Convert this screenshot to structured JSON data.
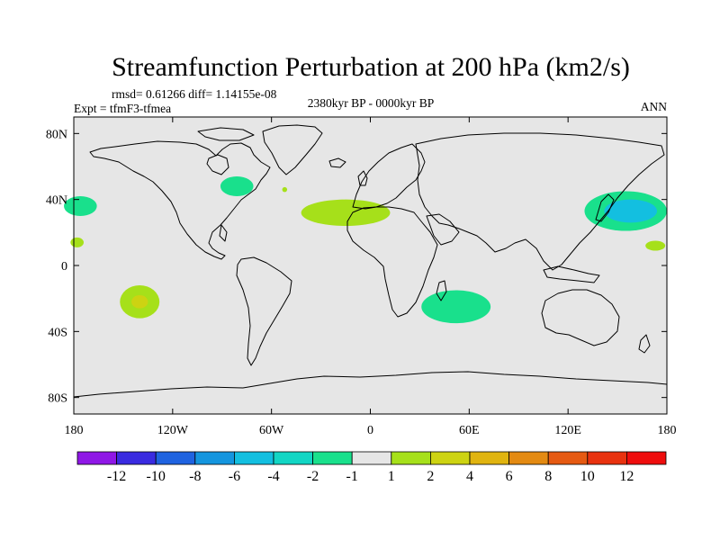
{
  "chart_data": {
    "type": "map-contour",
    "title": "Streamfunction Perturbation at 200 hPa (km2/s)",
    "stats": "rmsd= 0.61266 diff= 1.14155e-08",
    "experiment": "Expt = tfmF3-tfmea",
    "period": "2380kyr BP - 0000kyr BP",
    "season": "ANN",
    "lon_range": [
      -180,
      180
    ],
    "lat_range": [
      -90,
      90
    ],
    "x_ticks": [
      {
        "lon": -180,
        "label": "180"
      },
      {
        "lon": -120,
        "label": "120W"
      },
      {
        "lon": -60,
        "label": "60W"
      },
      {
        "lon": 0,
        "label": "0"
      },
      {
        "lon": 60,
        "label": "60E"
      },
      {
        "lon": 120,
        "label": "120E"
      },
      {
        "lon": 180,
        "label": "180"
      }
    ],
    "y_ticks": [
      {
        "lat": 80,
        "label": "80N"
      },
      {
        "lat": 40,
        "label": "40N"
      },
      {
        "lat": 0,
        "label": "0"
      },
      {
        "lat": -40,
        "label": "40S"
      },
      {
        "lat": -80,
        "label": "80S"
      }
    ],
    "colorbar": {
      "colors": [
        "#8f17e6",
        "#3a2be0",
        "#1f63e0",
        "#1495de",
        "#13bfe0",
        "#12d6c4",
        "#19e08c",
        "#e6e6e6",
        "#a6e01a",
        "#cdd312",
        "#e0b410",
        "#e38a12",
        "#e55a12",
        "#e8320f",
        "#ee0d0d"
      ],
      "labels": [
        "-12",
        "-10",
        "-8",
        "-6",
        "-4",
        "-2",
        "-1",
        "1",
        "2",
        "4",
        "6",
        "8",
        "10",
        "12"
      ]
    },
    "anomalies": [
      {
        "name": "north-pacific-east-negative",
        "lon": -176,
        "lat": 36,
        "rlon": 10,
        "rlat": 6,
        "level": "-2"
      },
      {
        "name": "north-pacific-east-positive",
        "lon": -178,
        "lat": 14,
        "rlon": 4,
        "rlat": 3,
        "level": "2"
      },
      {
        "name": "great-lakes-negative",
        "lon": -81,
        "lat": 48,
        "rlon": 10,
        "rlat": 6,
        "level": "-2"
      },
      {
        "name": "atlantic-speck-positive",
        "lon": -52,
        "lat": 46,
        "rlon": 1.5,
        "rlat": 1.5,
        "level": "2"
      },
      {
        "name": "north-atlantic-positive",
        "lon": -15,
        "lat": 32,
        "rlon": 27,
        "rlat": 8,
        "level": "2"
      },
      {
        "name": "south-pacific-positive",
        "lon": -140,
        "lat": -22,
        "rlon": 12,
        "rlat": 10,
        "level": "2"
      },
      {
        "name": "south-pacific-core",
        "lon": -140,
        "lat": -22,
        "rlon": 5,
        "rlat": 4,
        "level": "4"
      },
      {
        "name": "south-indian-negative",
        "lon": 52,
        "lat": -25,
        "rlon": 21,
        "rlat": 10,
        "level": "-2"
      },
      {
        "name": "west-pacific-negative",
        "lon": 155,
        "lat": 33,
        "rlon": 25,
        "rlat": 12,
        "level": "-2"
      },
      {
        "name": "west-pacific-core",
        "lon": 158,
        "lat": 33,
        "rlon": 16,
        "rlat": 7,
        "level": "-4"
      },
      {
        "name": "west-pacific-positive",
        "lon": 173,
        "lat": 12,
        "rlon": 6,
        "rlat": 3,
        "level": "2"
      }
    ],
    "level_colors": {
      "-4": "#13bfe0",
      "-2": "#19e08c",
      "2": "#a6e01a",
      "4": "#cdd312"
    },
    "land_color": "#e6e6e6",
    "coast_color": "#000000"
  }
}
